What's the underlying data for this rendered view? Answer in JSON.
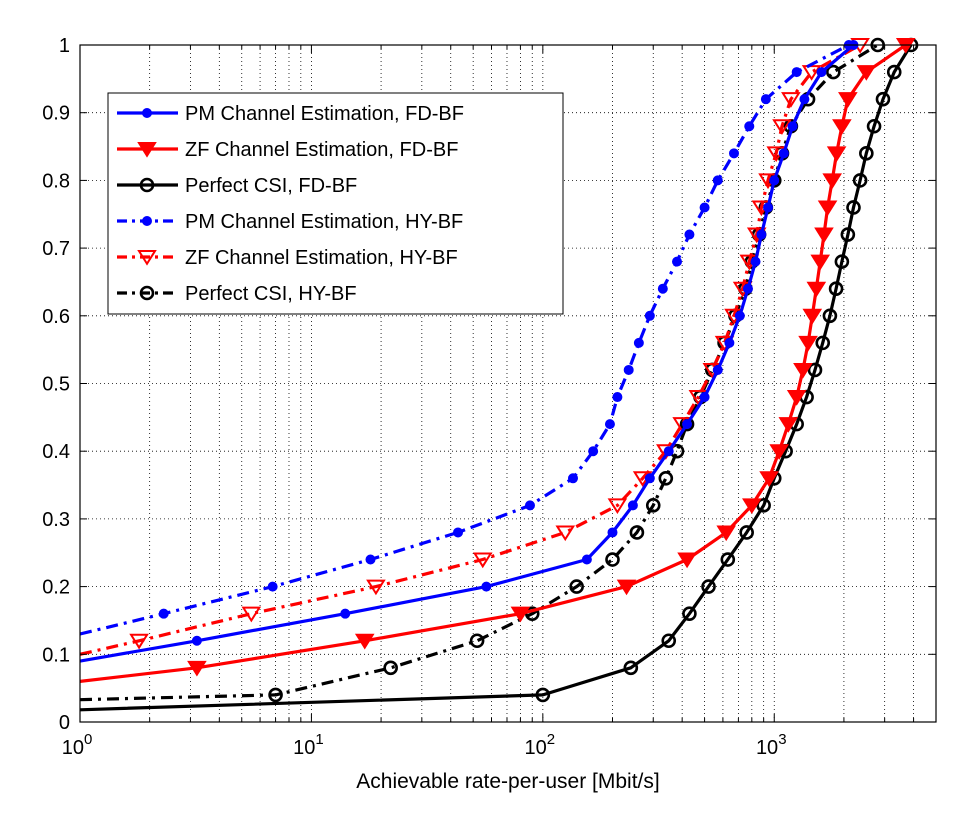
{
  "chart_data": {
    "type": "line",
    "title": "",
    "xlabel": "Achievable rate-per-user [Mbit/s]",
    "ylabel": "",
    "xscale": "log",
    "xlim": [
      1,
      5000
    ],
    "ylim": [
      0,
      1
    ],
    "grid": true,
    "legend_position": "top-left",
    "x_ticks": [
      {
        "value": 1,
        "base": "10",
        "exp": "0"
      },
      {
        "value": 10,
        "base": "10",
        "exp": "1"
      },
      {
        "value": 100,
        "base": "10",
        "exp": "2"
      },
      {
        "value": 1000,
        "base": "10",
        "exp": "3"
      }
    ],
    "y_ticks": [
      "0",
      "0.1",
      "0.2",
      "0.3",
      "0.4",
      "0.5",
      "0.6",
      "0.7",
      "0.8",
      "0.9",
      "1"
    ],
    "series": [
      {
        "name": "PM Channel Estimation, FD-BF",
        "color": "#0000ff",
        "dash": "solid",
        "marker": "dot",
        "points": [
          [
            1,
            0.09
          ],
          [
            3.2,
            0.12
          ],
          [
            14,
            0.16
          ],
          [
            57,
            0.2
          ],
          [
            155,
            0.24
          ],
          [
            200,
            0.28
          ],
          [
            245,
            0.32
          ],
          [
            290,
            0.36
          ],
          [
            350,
            0.4
          ],
          [
            420,
            0.44
          ],
          [
            500,
            0.48
          ],
          [
            570,
            0.52
          ],
          [
            640,
            0.56
          ],
          [
            710,
            0.6
          ],
          [
            770,
            0.64
          ],
          [
            830,
            0.68
          ],
          [
            880,
            0.72
          ],
          [
            940,
            0.76
          ],
          [
            1000,
            0.8
          ],
          [
            1100,
            0.84
          ],
          [
            1200,
            0.88
          ],
          [
            1350,
            0.92
          ],
          [
            1600,
            0.96
          ],
          [
            2200,
            1.0
          ]
        ],
        "markers": [
          [
            3.2,
            0.12
          ],
          [
            14,
            0.16
          ],
          [
            57,
            0.2
          ],
          [
            155,
            0.24
          ],
          [
            200,
            0.28
          ],
          [
            245,
            0.32
          ],
          [
            290,
            0.36
          ],
          [
            350,
            0.4
          ],
          [
            420,
            0.44
          ],
          [
            500,
            0.48
          ],
          [
            570,
            0.52
          ],
          [
            640,
            0.56
          ],
          [
            710,
            0.6
          ],
          [
            770,
            0.64
          ],
          [
            830,
            0.68
          ],
          [
            880,
            0.72
          ],
          [
            940,
            0.76
          ],
          [
            1000,
            0.8
          ],
          [
            1100,
            0.84
          ],
          [
            1200,
            0.88
          ],
          [
            1350,
            0.92
          ],
          [
            1600,
            0.96
          ],
          [
            2200,
            1.0
          ]
        ]
      },
      {
        "name": "ZF Channel Estimation, FD-BF",
        "color": "#ff0000",
        "dash": "solid",
        "marker": "triangle-filled",
        "points": [
          [
            1,
            0.06
          ],
          [
            3.2,
            0.08
          ],
          [
            17,
            0.12
          ],
          [
            80,
            0.16
          ],
          [
            230,
            0.2
          ],
          [
            420,
            0.24
          ],
          [
            620,
            0.28
          ],
          [
            800,
            0.32
          ],
          [
            950,
            0.36
          ],
          [
            1050,
            0.4
          ],
          [
            1150,
            0.44
          ],
          [
            1250,
            0.48
          ],
          [
            1330,
            0.52
          ],
          [
            1400,
            0.56
          ],
          [
            1460,
            0.6
          ],
          [
            1520,
            0.64
          ],
          [
            1580,
            0.68
          ],
          [
            1640,
            0.72
          ],
          [
            1700,
            0.76
          ],
          [
            1780,
            0.8
          ],
          [
            1860,
            0.84
          ],
          [
            1960,
            0.88
          ],
          [
            2080,
            0.92
          ],
          [
            2500,
            0.96
          ],
          [
            3700,
            1.0
          ]
        ],
        "markers": [
          [
            3.2,
            0.08
          ],
          [
            17,
            0.12
          ],
          [
            80,
            0.16
          ],
          [
            230,
            0.2
          ],
          [
            420,
            0.24
          ],
          [
            620,
            0.28
          ],
          [
            800,
            0.32
          ],
          [
            950,
            0.36
          ],
          [
            1050,
            0.4
          ],
          [
            1150,
            0.44
          ],
          [
            1250,
            0.48
          ],
          [
            1330,
            0.52
          ],
          [
            1400,
            0.56
          ],
          [
            1460,
            0.6
          ],
          [
            1520,
            0.64
          ],
          [
            1580,
            0.68
          ],
          [
            1640,
            0.72
          ],
          [
            1700,
            0.76
          ],
          [
            1780,
            0.8
          ],
          [
            1860,
            0.84
          ],
          [
            1960,
            0.88
          ],
          [
            2080,
            0.92
          ],
          [
            2500,
            0.96
          ],
          [
            3700,
            1.0
          ]
        ]
      },
      {
        "name": "Perfect CSI, FD-BF",
        "color": "#000000",
        "dash": "solid",
        "marker": "circle-open",
        "points": [
          [
            1,
            0.018
          ],
          [
            100,
            0.04
          ],
          [
            240,
            0.08
          ],
          [
            350,
            0.12
          ],
          [
            430,
            0.16
          ],
          [
            520,
            0.2
          ],
          [
            630,
            0.24
          ],
          [
            760,
            0.28
          ],
          [
            900,
            0.32
          ],
          [
            1000,
            0.36
          ],
          [
            1120,
            0.4
          ],
          [
            1250,
            0.44
          ],
          [
            1380,
            0.48
          ],
          [
            1500,
            0.52
          ],
          [
            1620,
            0.56
          ],
          [
            1740,
            0.6
          ],
          [
            1850,
            0.64
          ],
          [
            1960,
            0.68
          ],
          [
            2080,
            0.72
          ],
          [
            2200,
            0.76
          ],
          [
            2350,
            0.8
          ],
          [
            2500,
            0.84
          ],
          [
            2700,
            0.88
          ],
          [
            2950,
            0.92
          ],
          [
            3300,
            0.96
          ],
          [
            3900,
            1.0
          ]
        ],
        "markers": [
          [
            100,
            0.04
          ],
          [
            240,
            0.08
          ],
          [
            350,
            0.12
          ],
          [
            430,
            0.16
          ],
          [
            520,
            0.2
          ],
          [
            630,
            0.24
          ],
          [
            760,
            0.28
          ],
          [
            900,
            0.32
          ],
          [
            1000,
            0.36
          ],
          [
            1120,
            0.4
          ],
          [
            1250,
            0.44
          ],
          [
            1380,
            0.48
          ],
          [
            1500,
            0.52
          ],
          [
            1620,
            0.56
          ],
          [
            1740,
            0.6
          ],
          [
            1850,
            0.64
          ],
          [
            1960,
            0.68
          ],
          [
            2080,
            0.72
          ],
          [
            2200,
            0.76
          ],
          [
            2350,
            0.8
          ],
          [
            2500,
            0.84
          ],
          [
            2700,
            0.88
          ],
          [
            2950,
            0.92
          ],
          [
            3300,
            0.96
          ],
          [
            3900,
            1.0
          ]
        ]
      },
      {
        "name": "PM Channel Estimation, HY-BF",
        "color": "#0000ff",
        "dash": "dashdot",
        "marker": "dot",
        "points": [
          [
            1,
            0.13
          ],
          [
            2.3,
            0.16
          ],
          [
            6.8,
            0.2
          ],
          [
            18,
            0.24
          ],
          [
            43,
            0.28
          ],
          [
            88,
            0.32
          ],
          [
            135,
            0.36
          ],
          [
            165,
            0.4
          ],
          [
            195,
            0.44
          ],
          [
            210,
            0.48
          ],
          [
            235,
            0.52
          ],
          [
            260,
            0.56
          ],
          [
            290,
            0.6
          ],
          [
            330,
            0.64
          ],
          [
            380,
            0.68
          ],
          [
            430,
            0.72
          ],
          [
            500,
            0.76
          ],
          [
            570,
            0.8
          ],
          [
            670,
            0.84
          ],
          [
            780,
            0.88
          ],
          [
            920,
            0.92
          ],
          [
            1250,
            0.96
          ],
          [
            2100,
            1.0
          ]
        ],
        "markers": [
          [
            2.3,
            0.16
          ],
          [
            6.8,
            0.2
          ],
          [
            18,
            0.24
          ],
          [
            43,
            0.28
          ],
          [
            88,
            0.32
          ],
          [
            135,
            0.36
          ],
          [
            165,
            0.4
          ],
          [
            195,
            0.44
          ],
          [
            210,
            0.48
          ],
          [
            235,
            0.52
          ],
          [
            260,
            0.56
          ],
          [
            290,
            0.6
          ],
          [
            330,
            0.64
          ],
          [
            380,
            0.68
          ],
          [
            430,
            0.72
          ],
          [
            500,
            0.76
          ],
          [
            570,
            0.8
          ],
          [
            670,
            0.84
          ],
          [
            780,
            0.88
          ],
          [
            920,
            0.92
          ],
          [
            1250,
            0.96
          ],
          [
            2100,
            1.0
          ]
        ]
      },
      {
        "name": "ZF Channel Estimation, HY-BF",
        "color": "#ff0000",
        "dash": "dashdot",
        "marker": "triangle-open",
        "points": [
          [
            1,
            0.1
          ],
          [
            1.8,
            0.12
          ],
          [
            5.5,
            0.16
          ],
          [
            19,
            0.2
          ],
          [
            55,
            0.24
          ],
          [
            125,
            0.28
          ],
          [
            210,
            0.32
          ],
          [
            270,
            0.36
          ],
          [
            340,
            0.4
          ],
          [
            400,
            0.44
          ],
          [
            470,
            0.48
          ],
          [
            540,
            0.52
          ],
          [
            610,
            0.56
          ],
          [
            670,
            0.6
          ],
          [
            730,
            0.64
          ],
          [
            780,
            0.68
          ],
          [
            840,
            0.72
          ],
          [
            880,
            0.76
          ],
          [
            940,
            0.8
          ],
          [
            1020,
            0.84
          ],
          [
            1080,
            0.88
          ],
          [
            1180,
            0.92
          ],
          [
            1450,
            0.96
          ],
          [
            2350,
            1.0
          ]
        ],
        "markers": [
          [
            1.8,
            0.12
          ],
          [
            5.5,
            0.16
          ],
          [
            19,
            0.2
          ],
          [
            55,
            0.24
          ],
          [
            125,
            0.28
          ],
          [
            210,
            0.32
          ],
          [
            270,
            0.36
          ],
          [
            340,
            0.4
          ],
          [
            400,
            0.44
          ],
          [
            470,
            0.48
          ],
          [
            540,
            0.52
          ],
          [
            610,
            0.56
          ],
          [
            670,
            0.6
          ],
          [
            730,
            0.64
          ],
          [
            780,
            0.68
          ],
          [
            840,
            0.72
          ],
          [
            880,
            0.76
          ],
          [
            940,
            0.8
          ],
          [
            1020,
            0.84
          ],
          [
            1080,
            0.88
          ],
          [
            1180,
            0.92
          ],
          [
            1450,
            0.96
          ],
          [
            2350,
            1.0
          ]
        ]
      },
      {
        "name": "Perfect CSI, HY-BF",
        "color": "#000000",
        "dash": "dashdot",
        "marker": "circle-open",
        "points": [
          [
            1,
            0.033
          ],
          [
            7,
            0.04
          ],
          [
            22,
            0.08
          ],
          [
            52,
            0.12
          ],
          [
            90,
            0.16
          ],
          [
            140,
            0.2
          ],
          [
            200,
            0.24
          ],
          [
            255,
            0.28
          ],
          [
            300,
            0.32
          ],
          [
            340,
            0.36
          ],
          [
            380,
            0.4
          ],
          [
            420,
            0.44
          ],
          [
            480,
            0.48
          ],
          [
            540,
            0.52
          ],
          [
            610,
            0.56
          ],
          [
            680,
            0.6
          ],
          [
            750,
            0.64
          ],
          [
            800,
            0.68
          ],
          [
            860,
            0.72
          ],
          [
            920,
            0.76
          ],
          [
            1000,
            0.8
          ],
          [
            1080,
            0.84
          ],
          [
            1180,
            0.88
          ],
          [
            1400,
            0.92
          ],
          [
            1800,
            0.96
          ],
          [
            2800,
            1.0
          ]
        ],
        "markers": [
          [
            7,
            0.04
          ],
          [
            22,
            0.08
          ],
          [
            52,
            0.12
          ],
          [
            90,
            0.16
          ],
          [
            140,
            0.2
          ],
          [
            200,
            0.24
          ],
          [
            255,
            0.28
          ],
          [
            300,
            0.32
          ],
          [
            340,
            0.36
          ],
          [
            380,
            0.4
          ],
          [
            420,
            0.44
          ],
          [
            480,
            0.48
          ],
          [
            540,
            0.52
          ],
          [
            610,
            0.56
          ],
          [
            680,
            0.6
          ],
          [
            750,
            0.64
          ],
          [
            800,
            0.68
          ],
          [
            860,
            0.72
          ],
          [
            920,
            0.76
          ],
          [
            1000,
            0.8
          ],
          [
            1080,
            0.84
          ],
          [
            1180,
            0.88
          ],
          [
            1400,
            0.92
          ],
          [
            1800,
            0.96
          ],
          [
            2800,
            1.0
          ]
        ]
      }
    ]
  }
}
